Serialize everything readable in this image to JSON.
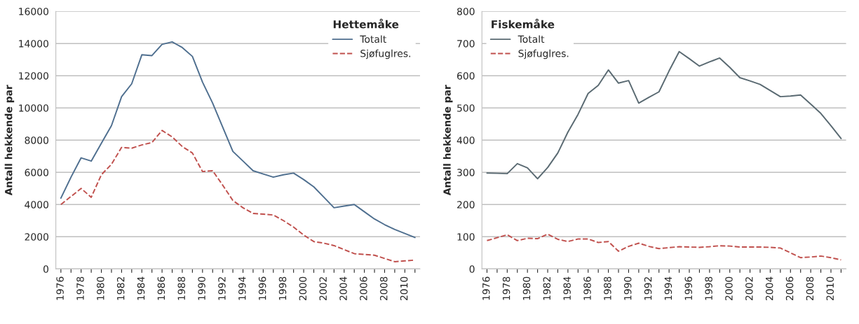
{
  "chart_data": [
    {
      "type": "line",
      "ylabel": "Antall hekkende par",
      "legend_title": "Hettemåke",
      "legend": "top right",
      "grid": "y",
      "categories": [
        "1976",
        null,
        "1978",
        null,
        "1980",
        null,
        "1982",
        null,
        "1984",
        null,
        "1986",
        null,
        "1988",
        null,
        "1990",
        null,
        "1992",
        null,
        "1994",
        null,
        "1996",
        null,
        "1998",
        null,
        "2000",
        null,
        "2002",
        null,
        "2004",
        null,
        "2006",
        null,
        "2008",
        null,
        "2010",
        null
      ],
      "ylim": [
        0,
        16000
      ],
      "yticks": [
        0,
        2000,
        4000,
        6000,
        8000,
        10000,
        12000,
        14000,
        16000
      ],
      "series": [
        {
          "name": "Totalt",
          "color": "#4f6f8f",
          "line_style": "solid",
          "values": [
            4400,
            5700,
            6900,
            6700,
            7800,
            8900,
            10700,
            11500,
            13300,
            13250,
            13950,
            14100,
            13750,
            13200,
            11600,
            10300,
            8800,
            7300,
            6700,
            6100,
            5900,
            5700,
            5850,
            5950,
            5550,
            5100,
            4450,
            3800,
            3900,
            4000,
            3550,
            3100,
            2750,
            2450,
            2200,
            1950
          ]
        },
        {
          "name": "Sjøfuglres.",
          "color": "#c0504d",
          "line_style": "dashed",
          "values": [
            4000,
            4500,
            5000,
            4450,
            5850,
            6500,
            7550,
            7500,
            7700,
            7850,
            8600,
            8200,
            7600,
            7200,
            6050,
            6100,
            5200,
            4250,
            3800,
            3450,
            3400,
            3350,
            3000,
            2600,
            2100,
            1700,
            1600,
            1450,
            1200,
            950,
            900,
            850,
            650,
            450,
            500,
            550
          ]
        }
      ]
    },
    {
      "type": "line",
      "ylabel": "Antall hekkende par",
      "legend_title": "Fiskemåke",
      "legend": "top left",
      "grid": "y",
      "categories": [
        "1976",
        null,
        "1978",
        null,
        "1980",
        null,
        "1982",
        null,
        "1984",
        null,
        "1986",
        null,
        "1988",
        null,
        "1990",
        null,
        "1992",
        null,
        "1994",
        null,
        "1996",
        null,
        "1998",
        null,
        "2000",
        null,
        "2002",
        null,
        "2004",
        null,
        "2006",
        null,
        "2008",
        null,
        "2010",
        null
      ],
      "ylim": [
        0,
        800
      ],
      "yticks": [
        0,
        100,
        200,
        300,
        400,
        500,
        600,
        700,
        800
      ],
      "series": [
        {
          "name": "Totalt",
          "color": "#5a6a72",
          "line_style": "solid",
          "values": [
            298,
            297,
            296,
            327,
            314,
            280,
            315,
            360,
            425,
            480,
            545,
            570,
            618,
            577,
            585,
            515,
            533,
            550,
            615,
            675,
            653,
            630,
            643,
            655,
            626,
            594,
            584,
            573,
            554,
            535,
            537,
            540,
            512,
            483,
            445,
            405
          ]
        },
        {
          "name": "Sjøfuglres.",
          "color": "#c0504d",
          "line_style": "dashed",
          "values": [
            88,
            97,
            106,
            88,
            95,
            94,
            108,
            92,
            85,
            93,
            93,
            82,
            85,
            55,
            70,
            80,
            70,
            63,
            66,
            69,
            68,
            67,
            69,
            72,
            71,
            68,
            68,
            68,
            67,
            65,
            50,
            35,
            37,
            40,
            35,
            28
          ]
        }
      ]
    }
  ]
}
